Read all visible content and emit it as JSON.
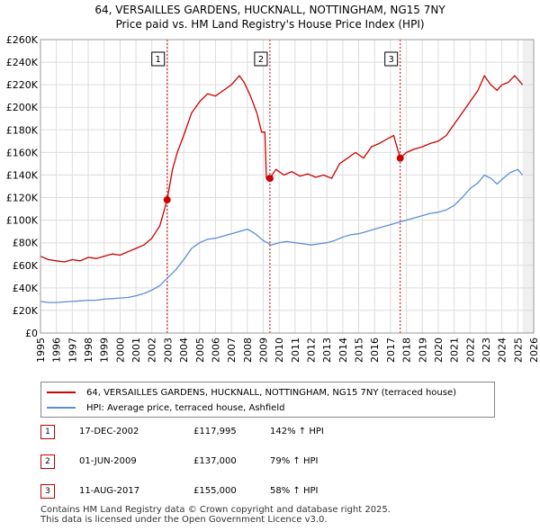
{
  "header": {
    "title": "64, VERSAILLES GARDENS, HUCKNALL, NOTTINGHAM, NG15 7NY",
    "subtitle": "Price paid vs. HM Land Registry's House Price Index (HPI)"
  },
  "colors": {
    "property": "#cc0000",
    "hpi": "#5b8fd4",
    "grid": "#dddddd",
    "marker_line": "#cc0000"
  },
  "chart_data": {
    "type": "line",
    "title": "64, VERSAILLES GARDENS, HUCKNALL, NOTTINGHAM, NG15 7NY",
    "subtitle": "Price paid vs. HM Land Registry's House Price Index (HPI)",
    "xlabel": "",
    "ylabel": "",
    "xlim": [
      1995,
      2026
    ],
    "ylim": [
      0,
      260000
    ],
    "x_ticks": [
      "1995",
      "1996",
      "1997",
      "1998",
      "1999",
      "2000",
      "2001",
      "2002",
      "2003",
      "2004",
      "2005",
      "2006",
      "2007",
      "2008",
      "2009",
      "2010",
      "2011",
      "2012",
      "2013",
      "2014",
      "2015",
      "2016",
      "2017",
      "2018",
      "2019",
      "2020",
      "2021",
      "2022",
      "2023",
      "2024",
      "2025",
      "2026"
    ],
    "y_ticks": [
      {
        "value": 0,
        "label": "£0"
      },
      {
        "value": 20000,
        "label": "£20K"
      },
      {
        "value": 40000,
        "label": "£40K"
      },
      {
        "value": 60000,
        "label": "£60K"
      },
      {
        "value": 80000,
        "label": "£80K"
      },
      {
        "value": 100000,
        "label": "£100K"
      },
      {
        "value": 120000,
        "label": "£120K"
      },
      {
        "value": 140000,
        "label": "£140K"
      },
      {
        "value": 160000,
        "label": "£160K"
      },
      {
        "value": 180000,
        "label": "£180K"
      },
      {
        "value": 200000,
        "label": "£200K"
      },
      {
        "value": 220000,
        "label": "£220K"
      },
      {
        "value": 240000,
        "label": "£240K"
      },
      {
        "value": 260000,
        "label": "£260K"
      }
    ],
    "grid": true,
    "legend_position": "below",
    "series": [
      {
        "name": "64, VERSAILLES GARDENS, HUCKNALL, NOTTINGHAM, NG15 7NY (terraced house)",
        "color": "#cc0000",
        "x": [
          1995.0,
          1995.5,
          1996.0,
          1996.5,
          1997.0,
          1997.5,
          1998.0,
          1998.5,
          1999.0,
          1999.5,
          2000.0,
          2000.5,
          2001.0,
          2001.5,
          2002.0,
          2002.5,
          2002.96,
          2003.3,
          2003.6,
          2004.0,
          2004.5,
          2005.0,
          2005.5,
          2006.0,
          2006.5,
          2007.0,
          2007.5,
          2007.8,
          2008.2,
          2008.6,
          2008.9,
          2009.1,
          2009.2,
          2009.42,
          2009.8,
          2010.3,
          2010.8,
          2011.3,
          2011.8,
          2012.3,
          2012.8,
          2013.3,
          2013.8,
          2014.3,
          2014.8,
          2015.3,
          2015.8,
          2016.3,
          2016.8,
          2017.2,
          2017.4,
          2017.61,
          2018.0,
          2018.5,
          2019.0,
          2019.5,
          2020.0,
          2020.5,
          2021.0,
          2021.5,
          2022.0,
          2022.5,
          2022.9,
          2023.3,
          2023.7,
          2024.0,
          2024.4,
          2024.8,
          2025.0,
          2025.3
        ],
        "y": [
          68000,
          65000,
          64000,
          63000,
          65000,
          64000,
          67000,
          66000,
          68000,
          70000,
          69000,
          72000,
          75000,
          78000,
          84000,
          95000,
          117995,
          145000,
          160000,
          175000,
          195000,
          205000,
          212000,
          210000,
          215000,
          220000,
          228000,
          222000,
          210000,
          195000,
          178000,
          178000,
          137000,
          137000,
          145000,
          140000,
          143000,
          139000,
          141000,
          138000,
          140000,
          137000,
          150000,
          155000,
          160000,
          155000,
          165000,
          168000,
          172000,
          175000,
          165000,
          155000,
          160000,
          163000,
          165000,
          168000,
          170000,
          175000,
          185000,
          195000,
          205000,
          215000,
          228000,
          220000,
          215000,
          220000,
          222000,
          228000,
          225000,
          220000
        ]
      },
      {
        "name": "HPI: Average price, terraced house, Ashfield",
        "color": "#5b8fd4",
        "x": [
          1995.0,
          1995.5,
          1996.0,
          1996.5,
          1997.0,
          1997.5,
          1998.0,
          1998.5,
          1999.0,
          1999.5,
          2000.0,
          2000.5,
          2001.0,
          2001.5,
          2002.0,
          2002.5,
          2003.0,
          2003.5,
          2004.0,
          2004.5,
          2005.0,
          2005.5,
          2006.0,
          2006.5,
          2007.0,
          2007.5,
          2008.0,
          2008.5,
          2009.0,
          2009.5,
          2010.0,
          2010.5,
          2011.0,
          2011.5,
          2012.0,
          2012.5,
          2013.0,
          2013.5,
          2014.0,
          2014.5,
          2015.0,
          2015.5,
          2016.0,
          2016.5,
          2017.0,
          2017.5,
          2018.0,
          2018.5,
          2019.0,
          2019.5,
          2020.0,
          2020.5,
          2021.0,
          2021.5,
          2022.0,
          2022.5,
          2022.9,
          2023.3,
          2023.7,
          2024.0,
          2024.5,
          2025.0,
          2025.3
        ],
        "y": [
          28000,
          27000,
          27000,
          27500,
          28000,
          28500,
          29000,
          29000,
          30000,
          30500,
          31000,
          31500,
          33000,
          35000,
          38000,
          42000,
          49000,
          56000,
          65000,
          75000,
          80000,
          83000,
          84000,
          86000,
          88000,
          90000,
          92000,
          88000,
          82000,
          78000,
          80000,
          81000,
          80000,
          79000,
          78000,
          79000,
          80000,
          82000,
          85000,
          87000,
          88000,
          90000,
          92000,
          94000,
          96000,
          98000,
          100000,
          102000,
          104000,
          106000,
          107000,
          109000,
          113000,
          120000,
          128000,
          133000,
          140000,
          137000,
          132000,
          136000,
          142000,
          145000,
          140000
        ]
      }
    ],
    "transactions": [
      {
        "num": "1",
        "x": 2002.96,
        "y": 117995
      },
      {
        "num": "2",
        "x": 2009.42,
        "y": 137000
      },
      {
        "num": "3",
        "x": 2017.61,
        "y": 155000
      }
    ]
  },
  "legend": {
    "property_label": "64, VERSAILLES GARDENS, HUCKNALL, NOTTINGHAM, NG15 7NY (terraced house)",
    "hpi_label": "HPI: Average price, terraced house, Ashfield"
  },
  "transactions_table": [
    {
      "num": "1",
      "date": "17-DEC-2002",
      "price": "£117,995",
      "hpi": "142% ↑ HPI"
    },
    {
      "num": "2",
      "date": "01-JUN-2009",
      "price": "£137,000",
      "hpi": "79% ↑ HPI"
    },
    {
      "num": "3",
      "date": "11-AUG-2017",
      "price": "£155,000",
      "hpi": "58% ↑ HPI"
    }
  ],
  "footer": {
    "line1": "Contains HM Land Registry data © Crown copyright and database right 2025.",
    "line2": "This data is licensed under the Open Government Licence v3.0."
  }
}
